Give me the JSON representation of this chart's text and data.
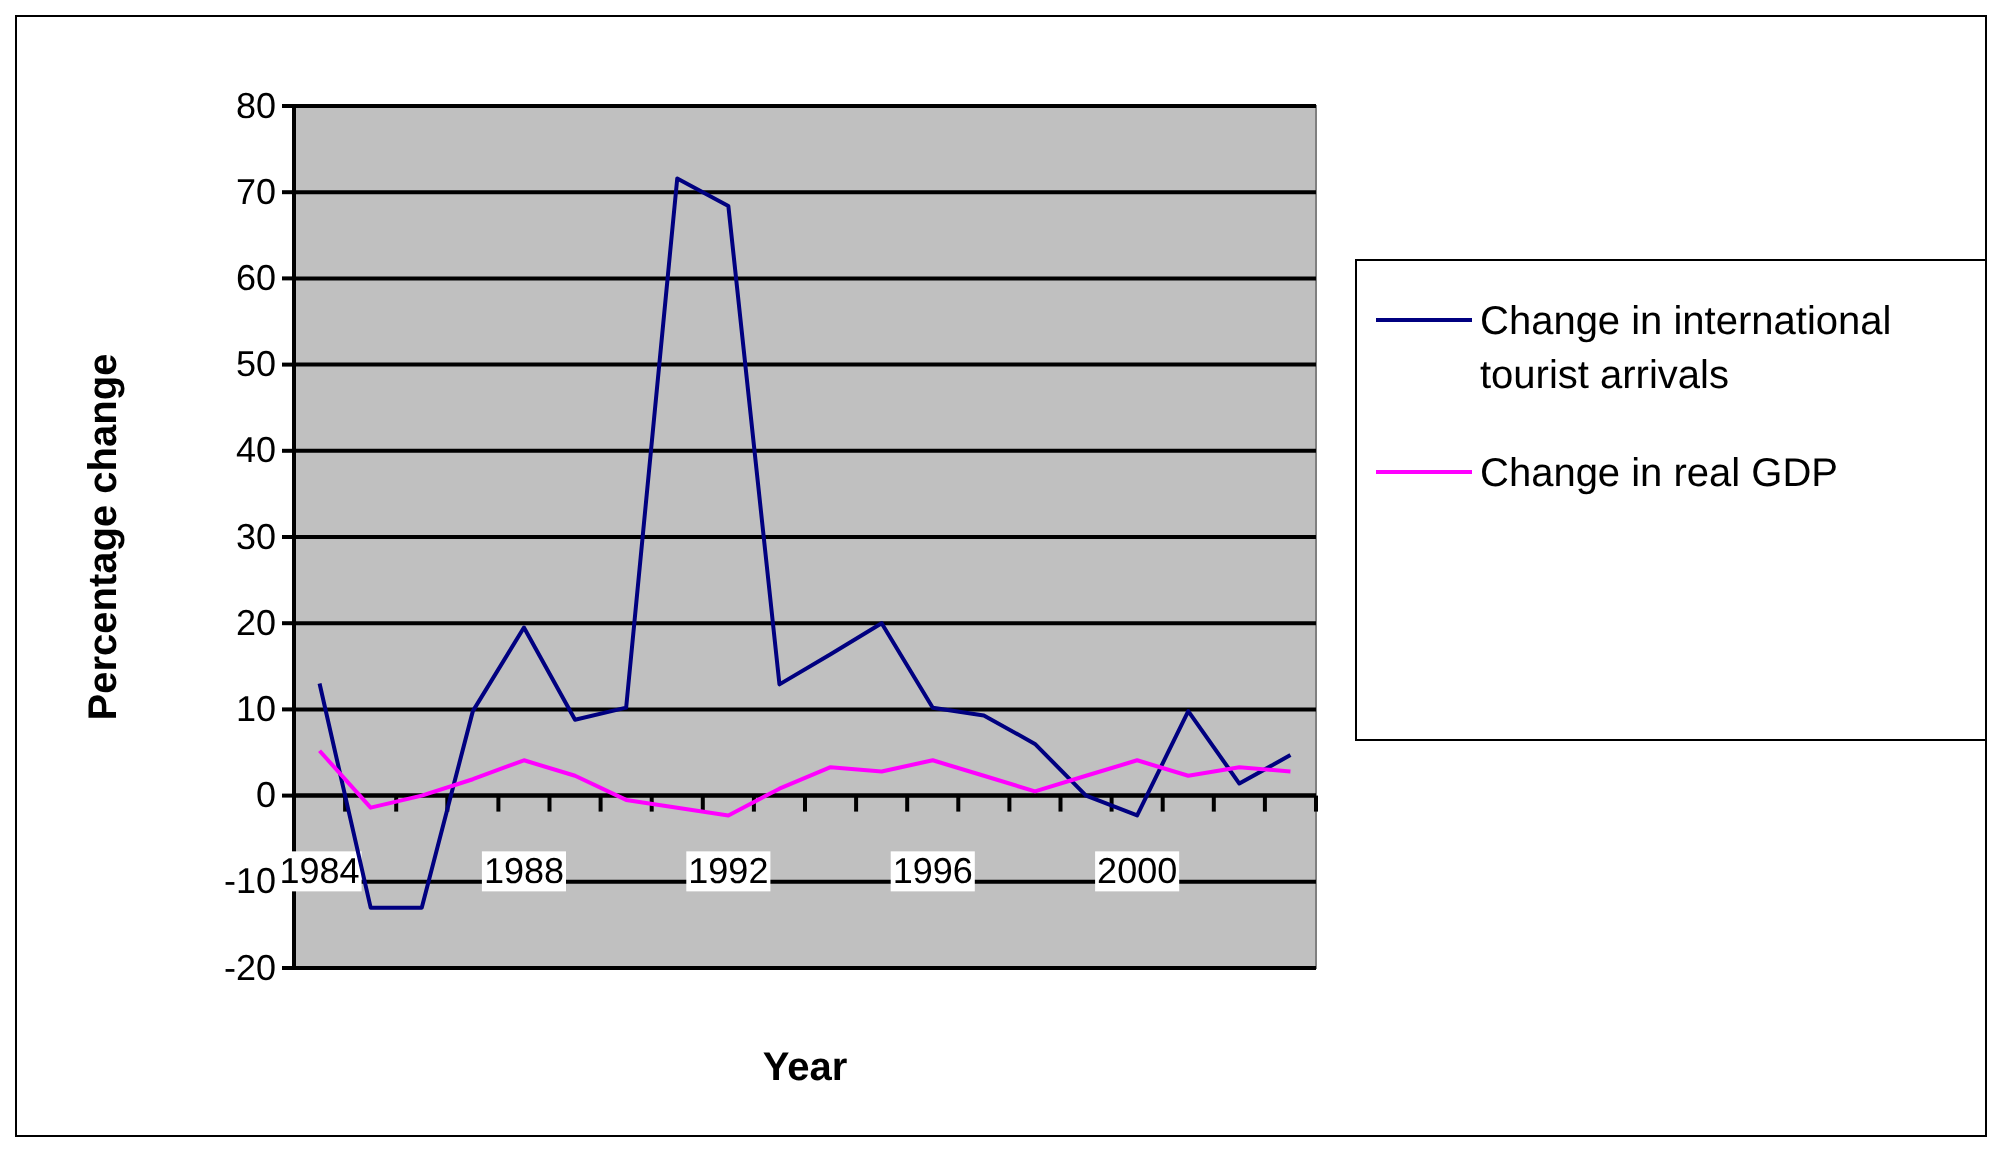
{
  "chart_data": {
    "type": "line",
    "xlabel": "Year",
    "ylabel": "Percentage change",
    "categories": [
      "1984",
      null,
      null,
      null,
      "1988",
      null,
      null,
      null,
      "1992",
      null,
      null,
      null,
      "1996",
      null,
      null,
      null,
      "2000",
      null,
      null,
      null
    ],
    "series": [
      {
        "name": "Change in international tourist arrivals",
        "color": "#000080",
        "values": [
          13,
          -13,
          -13,
          9.8,
          19.5,
          8.8,
          10.2,
          71.6,
          68.4,
          12.9,
          16.4,
          20,
          10.2,
          9.3,
          6,
          0,
          -2.3,
          9.8,
          1.4,
          4.7
        ]
      },
      {
        "name": "Change in real GDP",
        "color": "#ff00ff",
        "values": [
          5.2,
          -1.4,
          0,
          1.9,
          4.1,
          2.3,
          -0.5,
          -1.4,
          -2.3,
          0.8,
          3.3,
          2.8,
          4.1,
          2.3,
          0.5,
          2.3,
          4.1,
          2.3,
          3.3,
          2.8
        ]
      }
    ],
    "ylim": [
      -20,
      80
    ],
    "yticks": [
      -20,
      -10,
      0,
      10,
      20,
      30,
      40,
      50,
      60,
      70,
      80
    ],
    "grid": "y",
    "legend": "right",
    "marker": "none",
    "line_style": "solid"
  }
}
